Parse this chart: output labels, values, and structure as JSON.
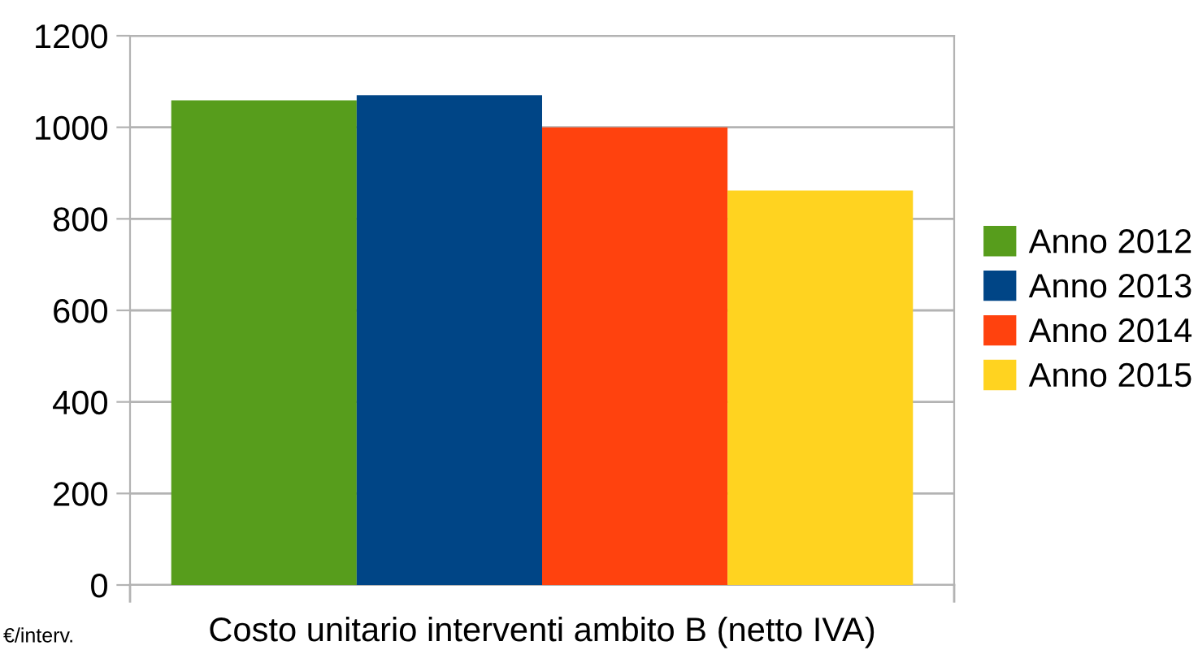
{
  "chart_data": {
    "type": "bar",
    "ylabel": "€/interv.",
    "categories": [
      "Costo unitario interventi ambito B (netto IVA)"
    ],
    "series": [
      {
        "name": "Anno 2012",
        "color": "#579d1c",
        "values": [
          1059
        ]
      },
      {
        "name": "Anno 2013",
        "color": "#004586",
        "values": [
          1070
        ]
      },
      {
        "name": "Anno 2014",
        "color": "#ff420e",
        "values": [
          1000
        ]
      },
      {
        "name": "Anno 2015",
        "color": "#ffd320",
        "values": [
          862
        ]
      }
    ],
    "ylim": [
      0,
      1200
    ],
    "yticks": [
      0,
      200,
      400,
      600,
      800,
      1000,
      1200
    ],
    "grid": "y",
    "legend": "right"
  }
}
